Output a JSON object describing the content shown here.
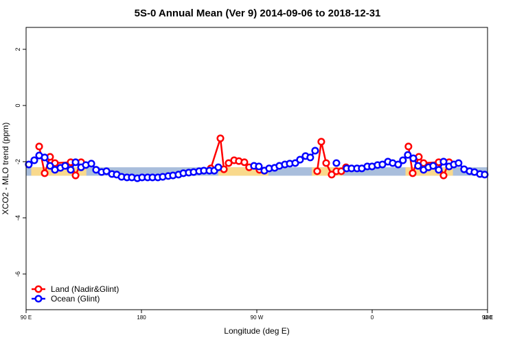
{
  "chart_data": {
    "type": "line",
    "title": "5S-0 Annual Mean (Ver 9)   2014-09-06 to 2018-12-31",
    "xlabel": "Longitude (deg E)",
    "ylabel": "XCO2 - MLO trend (ppm)",
    "xlim": [
      90,
      450
    ],
    "ylim": [
      -7.27,
      2.78
    ],
    "xticks": [
      {
        "value": 90,
        "label": "90 E"
      },
      {
        "value": 180,
        "label": "180"
      },
      {
        "value": 270,
        "label": "90 W"
      },
      {
        "value": 360,
        "label": "0"
      },
      {
        "value": 450,
        "label": "90 E"
      },
      {
        "value": 540,
        "label": "180"
      }
    ],
    "yticks": [
      2,
      0,
      -2,
      -4,
      -6
    ],
    "legend": "bottom-left",
    "bands": [
      {
        "color": "#a9bedc",
        "xlim": [
          90,
          450
        ],
        "ylim": [
          -2.5,
          -2.2
        ]
      },
      {
        "color": "#f9d98c",
        "xlim": [
          94,
          137
        ],
        "ylim": [
          -2.5,
          -2.2
        ]
      },
      {
        "color": "#f9d98c",
        "xlim": [
          240,
          279
        ],
        "ylim": [
          -2.5,
          -2.2
        ]
      },
      {
        "color": "#f9d98c",
        "xlim": [
          313,
          337
        ],
        "ylim": [
          -2.5,
          -2.2
        ]
      },
      {
        "color": "#f9d98c",
        "xlim": [
          386,
          423
        ],
        "ylim": [
          -2.5,
          -2.2
        ]
      }
    ],
    "series": [
      {
        "name": "Land (Nadir&Glint)",
        "color": "#ff0000",
        "x": [
          100.2,
          104.5,
          108.7,
          112.5,
          124.8,
          128.6,
          132.9,
          180,
          234.1,
          241.6,
          244.3,
          248.0,
          252.3,
          256.0,
          260.3,
          264.0,
          272.1,
          275.9,
          300,
          317.1,
          320.3,
          324.1,
          328.4,
          332.1,
          335.9,
          339.6,
          360,
          388.3,
          391.6,
          396.4,
          400.1,
          411.9,
          415.7,
          420.0
        ],
        "values": [
          -1.46,
          -2.41,
          -1.83,
          -2.05,
          -2.02,
          -2.49,
          -2.02,
          null,
          -2.24,
          -1.17,
          -2.27,
          -2.05,
          -1.95,
          -1.98,
          -2.02,
          -2.2,
          -2.29,
          -2.32,
          null,
          -2.34,
          -1.29,
          -2.05,
          -2.46,
          -2.34,
          -2.34,
          -2.2,
          null,
          -1.46,
          -2.41,
          -1.83,
          -2.05,
          -2.02,
          -2.49,
          -2.02
        ]
      },
      {
        "name": "Ocean (Glint)",
        "color": "#0000ff",
        "x": [
          92.1,
          96.4,
          100.2,
          104.5,
          108.7,
          112.5,
          116.8,
          120.5,
          124.8,
          128.6,
          132.9,
          136.6,
          140.9,
          144.6,
          148.9,
          152.7,
          157.0,
          160.7,
          164.5,
          168.7,
          172.5,
          176.8,
          180.5,
          184.8,
          188.6,
          192.8,
          196.6,
          200.9,
          204.6,
          208.9,
          212.7,
          216.9,
          220.7,
          225.0,
          228.7,
          233.0,
          236.8,
          240.0,
          250,
          267.8,
          271.6,
          275.9,
          279.6,
          283.9,
          287.6,
          291.9,
          295.7,
          300.0,
          303.7,
          308.0,
          311.7,
          315.5,
          325,
          332.1,
          336,
          340.1,
          343.9,
          348.2,
          351.9,
          356.2,
          359.9,
          364.2,
          368.0,
          372.3,
          376.0,
          380.3,
          384.0,
          387.8,
          392.1,
          395.8,
          400.1,
          403.9,
          407.6,
          411.9,
          415.7,
          420.0,
          423.7,
          427.4,
          431.7,
          436.0,
          439.8,
          444.1,
          447.8
        ],
        "values": [
          -2.1,
          -1.95,
          -1.78,
          -1.85,
          -2.15,
          -2.29,
          -2.22,
          -2.15,
          -2.29,
          -2.02,
          -2.2,
          -2.12,
          -2.07,
          -2.29,
          -2.37,
          -2.34,
          -2.44,
          -2.46,
          -2.54,
          -2.56,
          -2.56,
          -2.59,
          -2.56,
          -2.56,
          -2.56,
          -2.56,
          -2.54,
          -2.51,
          -2.49,
          -2.46,
          -2.41,
          -2.39,
          -2.37,
          -2.34,
          -2.32,
          -2.32,
          -2.32,
          -2.2,
          null,
          -2.15,
          -2.17,
          -2.32,
          -2.24,
          -2.22,
          -2.15,
          -2.1,
          -2.07,
          -2.05,
          -1.93,
          -1.8,
          -1.85,
          -1.61,
          null,
          -2.05,
          null,
          -2.24,
          -2.24,
          -2.24,
          -2.24,
          -2.17,
          -2.17,
          -2.12,
          -2.1,
          -2.0,
          -2.05,
          -2.1,
          -1.95,
          -1.76,
          -1.88,
          -2.15,
          -2.29,
          -2.2,
          -2.15,
          -2.29,
          -2.0,
          -2.17,
          -2.1,
          -2.05,
          -2.27,
          -2.34,
          -2.37,
          -2.44,
          -2.46
        ]
      }
    ]
  }
}
